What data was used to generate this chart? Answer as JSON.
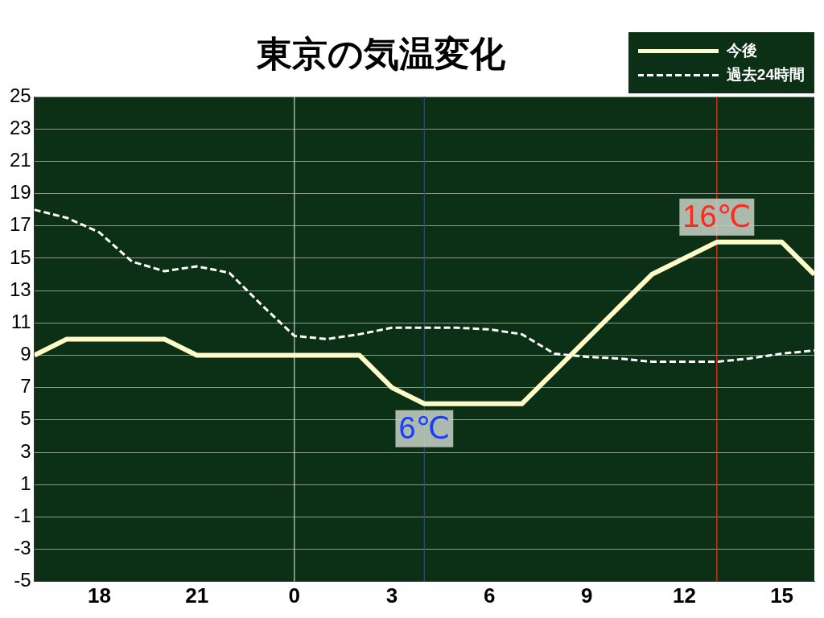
{
  "chart_data": {
    "type": "line",
    "title": "東京の気温変化",
    "x": [
      "--01-01T16:00",
      "--01-01T17:00",
      "--01-01T18:00",
      "--01-01T19:00",
      "--01-01T20:00",
      "--01-01T21:00",
      "--01-01T22:00",
      "--01-01T23:00",
      "--01-02T00:00",
      "--01-02T01:00",
      "--01-02T02:00",
      "--01-02T03:00",
      "--01-02T04:00",
      "--01-02T05:00",
      "--01-02T06:00",
      "--01-02T07:00",
      "--01-02T08:00",
      "--01-02T09:00",
      "--01-02T10:00",
      "--01-02T11:00",
      "--01-02T12:00",
      "--01-02T13:00",
      "--01-02T14:00",
      "--01-02T15:00",
      "--01-02T16:00"
    ],
    "series": [
      {
        "name": "今後",
        "color": "#fffcc8",
        "line_style": "solid",
        "x": [
          "--01-01T16:00",
          "--01-01T17:00",
          "--01-01T20:00",
          "--01-01T21:00",
          "--01-02T02:00",
          "--01-02T03:00",
          "--01-02T04:00",
          "--01-02T07:00",
          "--01-02T11:00",
          "--01-02T13:00",
          "--01-02T15:00",
          "--01-02T16:00"
        ],
        "values": [
          9,
          10,
          10,
          9,
          9,
          7,
          6,
          6,
          14,
          16,
          16,
          14
        ]
      },
      {
        "name": "過去24時間",
        "color": "#ffffff",
        "line_style": "dashed",
        "values": [
          18,
          17.5,
          16.6,
          14.8,
          14.2,
          14.5,
          14.1,
          12.1,
          10.2,
          10,
          10.3,
          10.7,
          10.7,
          10.7,
          10.6,
          10.3,
          9.1,
          8.9,
          8.8,
          8.6,
          8.6,
          8.6,
          8.8,
          9.1,
          9.3
        ]
      }
    ],
    "xlim": [
      "--01-01T16:00",
      "--01-02T16:00"
    ],
    "xticks": [
      {
        "value": "--01-01T18:00",
        "label": "18"
      },
      {
        "value": "--01-01T21:00",
        "label": "21"
      },
      {
        "value": "--01-02T00:00",
        "label": "0"
      },
      {
        "value": "--01-02T03:00",
        "label": "3"
      },
      {
        "value": "--01-02T06:00",
        "label": "6"
      },
      {
        "value": "--01-02T09:00",
        "label": "9"
      },
      {
        "value": "--01-02T12:00",
        "label": "12"
      },
      {
        "value": "--01-02T15:00",
        "label": "15"
      }
    ],
    "ylim": [
      -5,
      25
    ],
    "yticks": [
      -5,
      -3,
      -1,
      1,
      3,
      5,
      7,
      9,
      11,
      13,
      15,
      17,
      19,
      21,
      23,
      25
    ],
    "grid": "y",
    "legend": "top right",
    "marker": "none",
    "ref_lines": [
      {
        "axis": "x",
        "value": "--01-02T00:00",
        "color": "#cccccc"
      },
      {
        "axis": "x",
        "value": "--01-02T04:00",
        "color": "#1a3cff"
      },
      {
        "axis": "x",
        "value": "--01-02T13:00",
        "color": "#ff2a1a"
      }
    ],
    "annotations": [
      {
        "text": "6℃",
        "x": "--01-02T04:00",
        "y": 6
      },
      {
        "text": "16℃",
        "x": "--01-02T13:00",
        "y": 16
      }
    ]
  }
}
